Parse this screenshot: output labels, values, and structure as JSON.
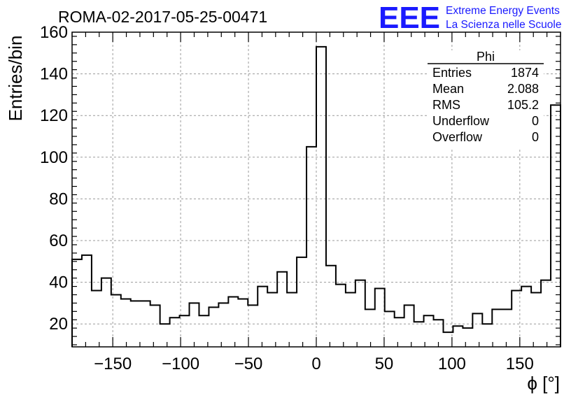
{
  "chart_data": {
    "type": "bar",
    "style": "step-histogram",
    "title": "ROMA-02-2017-05-25-00471",
    "xlabel": "ϕ [°]",
    "ylabel": "Entries/bin",
    "xlim": [
      -180,
      180
    ],
    "ylim": [
      9,
      160
    ],
    "bin_width": 7.2,
    "bin_start": -180,
    "x_ticks": [
      -150,
      -100,
      -50,
      0,
      50,
      100,
      150
    ],
    "x_tick_labels": [
      "−150",
      "−100",
      "−50",
      "0",
      "50",
      "100",
      "150"
    ],
    "y_ticks": [
      20,
      40,
      60,
      80,
      100,
      120,
      140,
      160
    ],
    "y_tick_labels": [
      "20",
      "40",
      "60",
      "80",
      "100",
      "120",
      "140",
      "160"
    ],
    "grid": true,
    "series": [
      {
        "values": [
          51,
          53,
          36,
          42,
          34,
          32,
          31,
          31,
          29,
          20,
          23,
          24,
          30,
          24,
          28,
          30,
          33,
          32,
          29,
          38,
          35,
          45,
          35,
          52,
          105,
          153,
          48,
          39,
          35,
          41,
          27,
          37,
          26,
          23,
          29,
          21,
          24,
          22,
          16,
          19,
          18,
          25,
          20,
          27,
          27,
          36,
          38,
          35,
          41,
          125
        ]
      }
    ],
    "stats_box": {
      "title": "Phi",
      "rows": [
        {
          "label": "Entries",
          "value": "1874"
        },
        {
          "label": "Mean",
          "value": "2.088"
        },
        {
          "label": "RMS",
          "value": "105.2"
        },
        {
          "label": "Underflow",
          "value": "0"
        },
        {
          "label": "Overflow",
          "value": "0"
        }
      ]
    },
    "legend_position": "top-right"
  },
  "logo": {
    "text": "EEE",
    "line1": "Extreme Energy Events",
    "line2": "La Scienza nelle Scuole",
    "color": "#1a1aff"
  }
}
